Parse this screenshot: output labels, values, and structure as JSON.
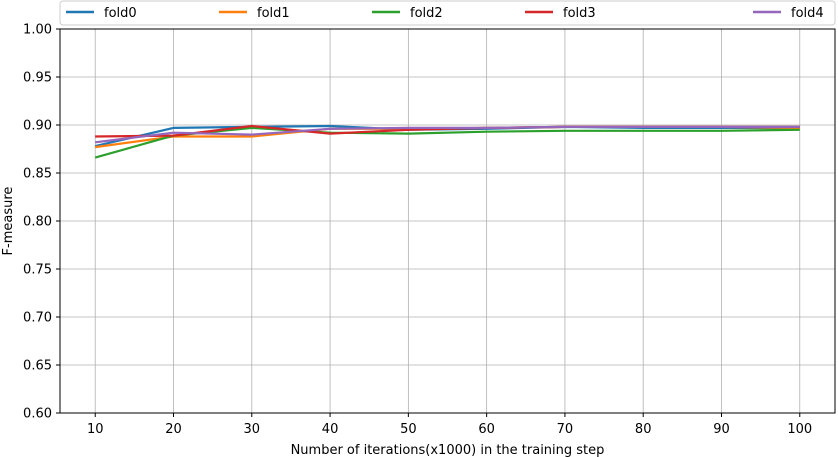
{
  "chart_data": {
    "type": "line",
    "title": "",
    "xlabel": "Number of iterations(x1000) in the training step",
    "ylabel": "F-measure",
    "x": [
      10,
      20,
      30,
      40,
      50,
      60,
      70,
      80,
      90,
      100
    ],
    "xticks": [
      "10",
      "20",
      "30",
      "40",
      "50",
      "60",
      "70",
      "80",
      "90",
      "100"
    ],
    "xlim": [
      5.5,
      104.5
    ],
    "ylim": [
      0.6,
      1.0
    ],
    "yticks": [
      "0.60",
      "0.65",
      "0.70",
      "0.75",
      "0.80",
      "0.85",
      "0.90",
      "0.95",
      "1.00"
    ],
    "grid": true,
    "legend_placement": "top",
    "series": [
      {
        "name": "fold0",
        "color": "#1f77b4",
        "values": [
          0.878,
          0.897,
          0.898,
          0.899,
          0.895,
          0.896,
          0.898,
          0.897,
          0.897,
          0.897
        ]
      },
      {
        "name": "fold1",
        "color": "#ff7f0e",
        "values": [
          0.877,
          0.888,
          0.888,
          0.896,
          0.896,
          0.897,
          0.898,
          0.898,
          0.898,
          0.897
        ]
      },
      {
        "name": "fold2",
        "color": "#2ca02c",
        "values": [
          0.866,
          0.889,
          0.897,
          0.892,
          0.891,
          0.893,
          0.894,
          0.894,
          0.894,
          0.895
        ]
      },
      {
        "name": "fold3",
        "color": "#d62728",
        "values": [
          0.888,
          0.889,
          0.899,
          0.891,
          0.895,
          0.897,
          0.898,
          0.898,
          0.898,
          0.898
        ]
      },
      {
        "name": "fold4",
        "color": "#9467bd",
        "values": [
          0.882,
          0.892,
          0.89,
          0.896,
          0.897,
          0.897,
          0.898,
          0.898,
          0.898,
          0.898
        ]
      }
    ]
  }
}
